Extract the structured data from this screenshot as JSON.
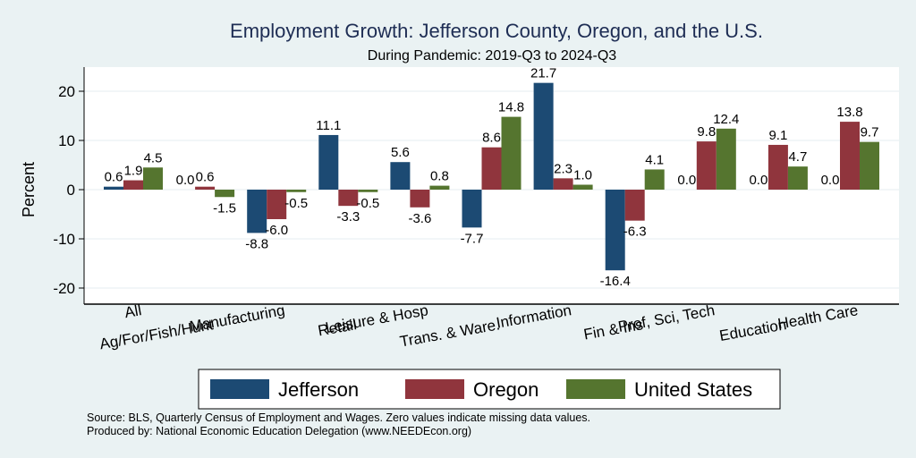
{
  "chart_data": {
    "type": "bar",
    "title": "Employment Growth: Jefferson County, Oregon, and the U.S.",
    "subtitle": "During Pandemic: 2019-Q3 to 2024-Q3",
    "xlabel": "",
    "ylabel": "Percent",
    "ylim": [
      -23,
      25
    ],
    "yticks": [
      20,
      10,
      0,
      -10,
      -20
    ],
    "grid": true,
    "categories": [
      "All",
      "Ag/For/Fish/Hunt",
      "Manufacturing",
      "Retail",
      "Leisure & Hosp",
      "Trans. & Ware.",
      "Information",
      "Fin & Ins",
      "Prof, Sci, Tech",
      "Education",
      "Health Care"
    ],
    "series": [
      {
        "name": "Jefferson",
        "color": "#1C4A73",
        "values": [
          0.6,
          0.0,
          -8.8,
          11.1,
          5.6,
          -7.7,
          21.7,
          -16.4,
          0.0,
          0.0,
          0.0
        ]
      },
      {
        "name": "Oregon",
        "color": "#90353D",
        "values": [
          1.9,
          0.6,
          -6.0,
          -3.3,
          -3.6,
          8.6,
          2.3,
          -6.3,
          9.8,
          9.1,
          13.8
        ]
      },
      {
        "name": "United States",
        "color": "#55752F",
        "values": [
          4.5,
          -1.5,
          -0.5,
          -0.5,
          0.8,
          14.8,
          1.0,
          4.1,
          12.4,
          4.7,
          9.7
        ]
      }
    ],
    "data_labels": [
      [
        "0.6",
        "0.0",
        "-8.8",
        "11.1",
        "5.6",
        "-7.7",
        "21.7",
        "-16.4",
        "0.0",
        "0.0",
        "0.0"
      ],
      [
        "1.9",
        "0.6",
        "-6.0",
        "-3.3",
        "-3.6",
        "8.6",
        "2.3",
        "-6.3",
        "9.8",
        "9.1",
        "13.8"
      ],
      [
        "4.5",
        "-1.5",
        "-0.5",
        "-0.5",
        "0.8",
        "14.8",
        "1.0",
        "4.1",
        "12.4",
        "4.7",
        "9.7"
      ]
    ],
    "legend": {
      "position": "bottom",
      "entries": [
        "Jefferson",
        "Oregon",
        "United States"
      ]
    },
    "notes": [
      "Source: BLS, Quarterly Census of Employment and Wages. Zero values indicate missing data values.",
      "Produced by: National Economic Education Delegation (www.NEEDEcon.org)"
    ]
  }
}
